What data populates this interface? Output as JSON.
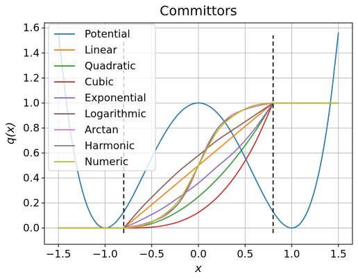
{
  "chart_data": {
    "type": "line",
    "title": "Committors",
    "xlabel": "x",
    "ylabel": "q(x)",
    "xlim": [
      -1.65,
      1.65
    ],
    "ylim": [
      -0.13,
      1.64
    ],
    "xticks": [
      -1.5,
      -1.0,
      -0.5,
      0.0,
      0.5,
      1.0,
      1.5
    ],
    "xtick_labels": [
      "−1.5",
      "−1.0",
      "−0.5",
      "0.0",
      "0.5",
      "1.0",
      "1.5"
    ],
    "yticks": [
      0.0,
      0.2,
      0.4,
      0.6,
      0.8,
      1.0,
      1.2,
      1.4,
      1.6
    ],
    "ytick_labels": [
      "0.0",
      "0.2",
      "0.4",
      "0.6",
      "0.8",
      "1.0",
      "1.2",
      "1.4",
      "1.6"
    ],
    "grid": true,
    "legend": "upper-left",
    "vlines": [
      {
        "x": -0.8,
        "y": [
          -0.04,
          1.54
        ],
        "style": "dashed",
        "color": "#000000"
      },
      {
        "x": 0.8,
        "y": [
          -0.04,
          1.54
        ],
        "style": "dashed",
        "color": "#000000"
      }
    ],
    "series": [
      {
        "name": "Potential",
        "color": "#1f77b4",
        "x": [
          -1.5,
          -1.4,
          -1.3,
          -1.2,
          -1.1,
          -1.0,
          -0.9,
          -0.8,
          -0.7,
          -0.6,
          -0.5,
          -0.4,
          -0.3,
          -0.2,
          -0.1,
          0.0,
          0.1,
          0.2,
          0.3,
          0.4,
          0.5,
          0.6,
          0.7,
          0.8,
          0.9,
          1.0,
          1.1,
          1.2,
          1.3,
          1.4,
          1.5
        ],
        "y": [
          1.5625,
          0.9216,
          0.4761,
          0.1936,
          0.0441,
          0.0,
          0.0361,
          0.1296,
          0.2601,
          0.4096,
          0.5625,
          0.7056,
          0.8281,
          0.9216,
          0.9801,
          1.0,
          0.9801,
          0.9216,
          0.8281,
          0.7056,
          0.5625,
          0.4096,
          0.2601,
          0.1296,
          0.0361,
          0.0,
          0.0441,
          0.1936,
          0.4761,
          0.9216,
          1.5625
        ]
      },
      {
        "name": "Linear",
        "color": "#ff7f0e",
        "x": [
          -1.5,
          -0.8,
          0.8,
          1.5
        ],
        "y": [
          0.0,
          0.0,
          1.0,
          1.0
        ]
      },
      {
        "name": "Quadratic",
        "color": "#2ca02c",
        "x": [
          -1.5,
          -0.8,
          -0.6,
          -0.4,
          -0.2,
          0.0,
          0.2,
          0.4,
          0.6,
          0.8,
          1.5
        ],
        "y": [
          0.0,
          0.0,
          0.0156,
          0.0625,
          0.1406,
          0.25,
          0.3906,
          0.5625,
          0.7656,
          1.0,
          1.0
        ]
      },
      {
        "name": "Cubic",
        "color": "#d62728",
        "x": [
          -1.5,
          -0.8,
          -0.6,
          -0.4,
          -0.2,
          0.0,
          0.2,
          0.4,
          0.6,
          0.8,
          1.5
        ],
        "y": [
          0.0,
          0.0,
          0.002,
          0.0156,
          0.0527,
          0.125,
          0.2441,
          0.4219,
          0.6699,
          1.0,
          1.0
        ]
      },
      {
        "name": "Exponential",
        "color": "#9467bd",
        "x": [
          -1.5,
          -0.8,
          -0.6,
          -0.4,
          -0.2,
          0.0,
          0.2,
          0.4,
          0.6,
          0.8,
          1.5
        ],
        "y": [
          0.0,
          0.0,
          0.07,
          0.15,
          0.25,
          0.36,
          0.49,
          0.62,
          0.79,
          1.0,
          1.0
        ]
      },
      {
        "name": "Logarithmic",
        "color": "#8c564b",
        "x": [
          -1.5,
          -0.8,
          -0.6,
          -0.4,
          -0.2,
          0.0,
          0.2,
          0.4,
          0.6,
          0.8,
          1.5
        ],
        "y": [
          0.0,
          0.0,
          0.17,
          0.32,
          0.46,
          0.58,
          0.7,
          0.8,
          0.9,
          1.0,
          1.0
        ]
      },
      {
        "name": "Arctan",
        "color": "#e377c2",
        "x": [
          -1.5,
          -0.8,
          -0.6,
          -0.4,
          -0.3,
          -0.2,
          -0.1,
          0.0,
          0.1,
          0.2,
          0.3,
          0.4,
          0.6,
          0.8,
          1.5
        ],
        "y": [
          0.0,
          0.0,
          0.03,
          0.08,
          0.13,
          0.21,
          0.33,
          0.5,
          0.67,
          0.79,
          0.87,
          0.92,
          0.97,
          1.0,
          1.0
        ]
      },
      {
        "name": "Harmonic",
        "color": "#7f7f7f",
        "x": [
          -1.5,
          -0.8,
          -0.6,
          -0.4,
          -0.2,
          0.0,
          0.2,
          0.4,
          0.6,
          0.8,
          1.5
        ],
        "y": [
          0.0,
          0.0,
          0.02,
          0.09,
          0.21,
          0.5,
          0.79,
          0.91,
          0.98,
          1.0,
          1.0
        ]
      },
      {
        "name": "Numeric",
        "color": "#bcbd22",
        "x": [
          -1.5,
          -0.8,
          -0.6,
          -0.4,
          -0.2,
          0.0,
          0.2,
          0.4,
          0.6,
          0.8,
          1.5
        ],
        "y": [
          0.0,
          0.0,
          0.02,
          0.09,
          0.23,
          0.5,
          0.77,
          0.91,
          0.98,
          1.0,
          1.0
        ]
      }
    ]
  }
}
